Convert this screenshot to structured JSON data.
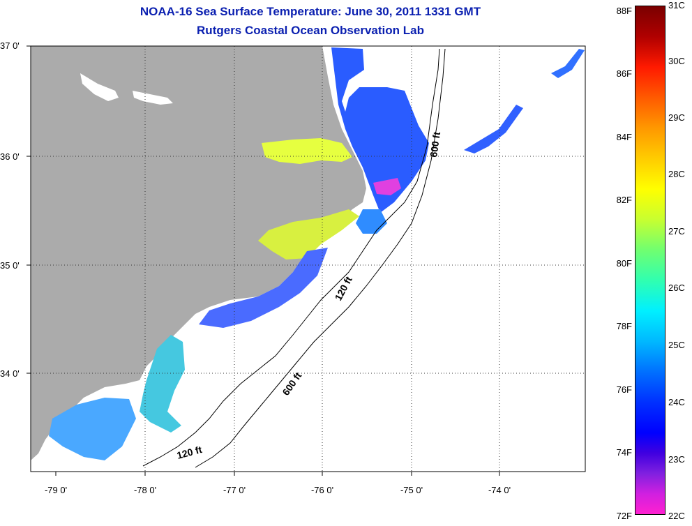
{
  "title": {
    "line1": "NOAA-16 Sea Surface Temperature:  June 30, 2011 1331 GMT",
    "line2": "Rutgers Coastal Ocean Observation Lab"
  },
  "map": {
    "lat_labels": [
      "37 0'",
      "36 0'",
      "35 0'",
      "34 0'"
    ],
    "lon_labels": [
      "-79 0'",
      "-78 0'",
      "-77 0'",
      "-76 0'",
      "-75 0'",
      "-74 0'"
    ],
    "contour_labels": {
      "shelf_120_north": "120 ft",
      "slope_600_north": "600 ft",
      "slope_600_south": "600 ft",
      "shelf_120_south": "120 ft"
    },
    "colors": {
      "land": "#ababab",
      "no_data": "#ffffff",
      "graticule": "#000000"
    }
  },
  "colorbar": {
    "fahrenheit_ticks": [
      "88F",
      "86F",
      "84F",
      "82F",
      "80F",
      "78F",
      "76F",
      "74F",
      "72F"
    ],
    "celsius_ticks": [
      "31C",
      "30C",
      "29C",
      "28C",
      "27C",
      "26C",
      "25C",
      "24C",
      "23C",
      "22C"
    ],
    "range_celsius": [
      22,
      31
    ],
    "range_fahrenheit": [
      72,
      88
    ]
  }
}
